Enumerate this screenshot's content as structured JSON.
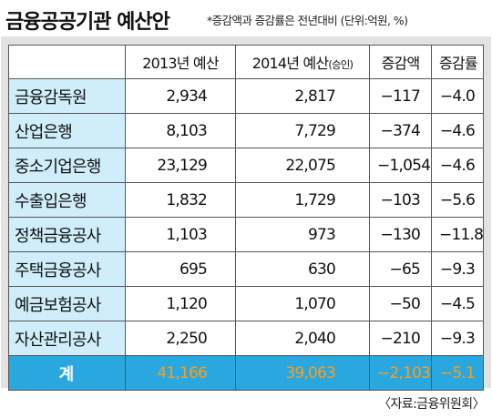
{
  "title": "금융공공기관 예산안",
  "note": "*증감액과 증감률은 전년대비 (단위:억원, %)",
  "source": "〈자료:금융위원회〉",
  "columns": {
    "c1": "2013년 예산",
    "c2_main": "2014년 예산",
    "c2_sub": "(승인)",
    "c3": "증감액",
    "c4": "증감률"
  },
  "rows": [
    {
      "name": "금융감독원",
      "y2013": "2,934",
      "y2014": "2,817",
      "diff": "−117",
      "rate": "−4.0"
    },
    {
      "name": "산업은행",
      "y2013": "8,103",
      "y2014": "7,729",
      "diff": "−374",
      "rate": "−4.6"
    },
    {
      "name": "중소기업은행",
      "y2013": "23,129",
      "y2014": "22,075",
      "diff": "−1,054",
      "rate": "−4.6"
    },
    {
      "name": "수출입은행",
      "y2013": "1,832",
      "y2014": "1,729",
      "diff": "−103",
      "rate": "−5.6"
    },
    {
      "name": "정책금융공사",
      "y2013": "1,103",
      "y2014": "973",
      "diff": "−130",
      "rate": "−11.8"
    },
    {
      "name": "주택금융공사",
      "y2013": "695",
      "y2014": "630",
      "diff": "−65",
      "rate": "−9.3"
    },
    {
      "name": "예금보험공사",
      "y2013": "1,120",
      "y2014": "1,070",
      "diff": "−50",
      "rate": "−4.5"
    },
    {
      "name": "자산관리공사",
      "y2013": "2,250",
      "y2014": "2,040",
      "diff": "−210",
      "rate": "−9.3"
    }
  ],
  "total": {
    "name": "계",
    "y2013": "41,166",
    "y2014": "39,063",
    "diff": "−2,103",
    "rate": "−5.1"
  },
  "colors": {
    "name_bg": "#cfeefa",
    "total_bg": "#29a8e0",
    "total_text": "#ff9c1a"
  }
}
